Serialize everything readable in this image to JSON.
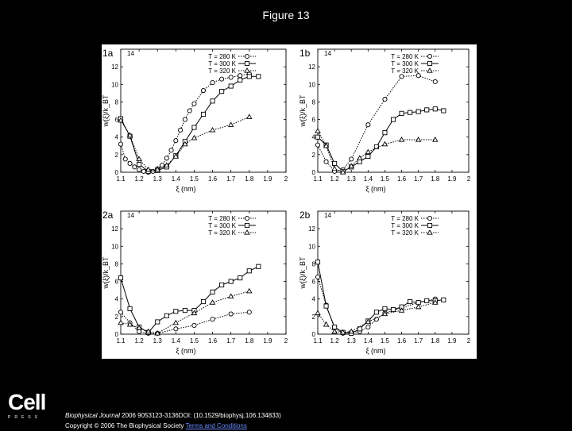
{
  "title": "Figure 13",
  "logo": {
    "name": "Cell",
    "sub": "PRESS"
  },
  "citation": {
    "journal": "Biophysical Journal",
    "ref": " 2006 9053123-3136DOI: (10.1529/biophysj.106.134833)",
    "copyright": "Copyright © 2006 The Biophysical Society ",
    "link": "Terms and Conditions"
  },
  "colors": {
    "background": "#000000",
    "panel": "#ffffff",
    "ink": "#000000",
    "link": "#6b8cff"
  },
  "chart_data": [
    {
      "type": "line",
      "panel_label": "1a",
      "xlabel": "ξ (nm)",
      "ylabel": "w(ξ)/k_BT",
      "xlim": [
        1.1,
        2
      ],
      "ylim": [
        0,
        14
      ],
      "xticks": [
        "1.1",
        "1.2",
        "1.3",
        "1.4",
        "1.5",
        "1.6",
        "1.7",
        "1.8",
        "1.9",
        "2"
      ],
      "yticks": [
        "0",
        "2",
        "4",
        "6",
        "8",
        "10",
        "12",
        "14"
      ],
      "legend_position": "top-right",
      "series": [
        {
          "name": "T = 280 K",
          "marker": "circle",
          "style": "dotted",
          "x": [
            1.1,
            1.125,
            1.15,
            1.175,
            1.2,
            1.225,
            1.25,
            1.275,
            1.3,
            1.325,
            1.35,
            1.375,
            1.4,
            1.425,
            1.45,
            1.475,
            1.5,
            1.55,
            1.6,
            1.65,
            1.7,
            1.75,
            1.8
          ],
          "y": [
            3.2,
            1.5,
            1.0,
            0.6,
            0.3,
            0.1,
            0.0,
            0.1,
            0.4,
            0.8,
            1.6,
            2.5,
            3.6,
            4.8,
            6.0,
            7.0,
            7.8,
            9.3,
            10.2,
            10.6,
            10.8,
            11.0,
            11.2
          ]
        },
        {
          "name": "T = 300 K",
          "marker": "square",
          "style": "solid",
          "x": [
            1.1,
            1.15,
            1.2,
            1.25,
            1.3,
            1.35,
            1.4,
            1.45,
            1.5,
            1.55,
            1.6,
            1.65,
            1.7,
            1.75,
            1.8,
            1.85
          ],
          "y": [
            6.1,
            4.1,
            0.9,
            0.1,
            0.2,
            0.6,
            1.9,
            3.5,
            5.1,
            6.6,
            8.1,
            9.2,
            9.8,
            10.5,
            10.9,
            10.9
          ]
        },
        {
          "name": "T = 320 K",
          "marker": "triangle",
          "style": "dotted",
          "x": [
            1.1,
            1.15,
            1.2,
            1.25,
            1.3,
            1.35,
            1.4,
            1.45,
            1.5,
            1.6,
            1.7,
            1.8
          ],
          "y": [
            5.9,
            4.2,
            1.5,
            0.3,
            0.3,
            0.8,
            1.8,
            3.2,
            3.9,
            4.8,
            5.4,
            6.3
          ]
        }
      ]
    },
    {
      "type": "line",
      "panel_label": "1b",
      "xlabel": "ξ (nm)",
      "ylabel": "w(ξ)/k_BT",
      "xlim": [
        1.1,
        2
      ],
      "ylim": [
        0,
        14
      ],
      "xticks": [
        "1.1",
        "1.2",
        "1.3",
        "1.4",
        "1.5",
        "1.6",
        "1.7",
        "1.8",
        "1.9",
        "2"
      ],
      "yticks": [
        "0",
        "2",
        "4",
        "6",
        "8",
        "10",
        "12",
        "14"
      ],
      "legend_position": "top-right",
      "series": [
        {
          "name": "T = 280 K",
          "marker": "circle",
          "style": "dotted",
          "x": [
            1.1,
            1.15,
            1.2,
            1.25,
            1.3,
            1.4,
            1.5,
            1.6,
            1.7,
            1.8
          ],
          "y": [
            3.1,
            1.2,
            0.1,
            0.3,
            1.5,
            5.4,
            8.3,
            10.9,
            11.0,
            10.3
          ]
        },
        {
          "name": "T = 300 K",
          "marker": "square",
          "style": "solid",
          "x": [
            1.1,
            1.15,
            1.2,
            1.25,
            1.3,
            1.35,
            1.4,
            1.45,
            1.5,
            1.55,
            1.6,
            1.65,
            1.7,
            1.75,
            1.8,
            1.85
          ],
          "y": [
            4.0,
            3.1,
            1.0,
            0.1,
            0.6,
            1.2,
            1.8,
            2.9,
            4.5,
            6.0,
            6.7,
            6.8,
            6.9,
            7.1,
            7.2,
            7.0
          ]
        },
        {
          "name": "T = 320 K",
          "marker": "triangle",
          "style": "dotted",
          "x": [
            1.1,
            1.15,
            1.2,
            1.25,
            1.3,
            1.35,
            1.4,
            1.5,
            1.6,
            1.7,
            1.8
          ],
          "y": [
            4.7,
            3.0,
            0.4,
            0.0,
            0.7,
            1.6,
            2.3,
            3.2,
            3.7,
            3.7,
            3.7
          ]
        }
      ]
    },
    {
      "type": "line",
      "panel_label": "2a",
      "xlabel": "ξ (nm)",
      "ylabel": "w(ξ)/k_BT",
      "xlim": [
        1.1,
        2
      ],
      "ylim": [
        0,
        14
      ],
      "xticks": [
        "1.1",
        "1.2",
        "1.3",
        "1.4",
        "1.5",
        "1.6",
        "1.7",
        "1.8",
        "1.9",
        "2"
      ],
      "yticks": [
        "0",
        "2",
        "4",
        "6",
        "8",
        "10",
        "12",
        "14"
      ],
      "legend_position": "top-right",
      "series": [
        {
          "name": "T = 280 K",
          "marker": "circle",
          "style": "dotted",
          "x": [
            1.1,
            1.15,
            1.2,
            1.25,
            1.3,
            1.4,
            1.5,
            1.6,
            1.7,
            1.8
          ],
          "y": [
            2.5,
            1.3,
            0.3,
            0.1,
            0.1,
            0.6,
            1.0,
            1.7,
            2.3,
            2.5
          ]
        },
        {
          "name": "T = 300 K",
          "marker": "square",
          "style": "solid",
          "x": [
            1.1,
            1.15,
            1.2,
            1.25,
            1.3,
            1.35,
            1.4,
            1.45,
            1.5,
            1.55,
            1.6,
            1.65,
            1.7,
            1.75,
            1.8,
            1.85
          ],
          "y": [
            6.4,
            2.9,
            0.8,
            0.2,
            1.4,
            2.1,
            2.6,
            2.7,
            2.7,
            3.7,
            4.8,
            5.6,
            6.0,
            6.4,
            7.2,
            7.7
          ]
        },
        {
          "name": "T = 320 K",
          "marker": "triangle",
          "style": "dotted",
          "x": [
            1.1,
            1.15,
            1.2,
            1.25,
            1.3,
            1.4,
            1.5,
            1.6,
            1.7,
            1.8
          ],
          "y": [
            1.3,
            1.1,
            0.7,
            0.3,
            0.1,
            1.3,
            2.4,
            3.6,
            4.3,
            4.9
          ]
        }
      ]
    },
    {
      "type": "line",
      "panel_label": "2b",
      "xlabel": "ξ (nm)",
      "ylabel": "w(ξ)/k_BT",
      "xlim": [
        1.1,
        2
      ],
      "ylim": [
        0,
        14
      ],
      "xticks": [
        "1.1",
        "1.2",
        "1.3",
        "1.4",
        "1.5",
        "1.6",
        "1.7",
        "1.8",
        "1.9",
        "2"
      ],
      "yticks": [
        "0",
        "2",
        "4",
        "6",
        "8",
        "10",
        "12",
        "14"
      ],
      "legend_position": "top-right",
      "series": [
        {
          "name": "T = 280 K",
          "marker": "circle",
          "style": "dotted",
          "x": [
            1.1,
            1.15,
            1.2,
            1.25,
            1.3,
            1.35,
            1.4,
            1.45,
            1.5,
            1.6,
            1.7,
            1.8
          ],
          "y": [
            6.5,
            3.3,
            0.7,
            0.1,
            0.2,
            0.3,
            0.8,
            1.7,
            2.4,
            3.0,
            3.6,
            4.0
          ]
        },
        {
          "name": "T = 300 K",
          "marker": "square",
          "style": "solid",
          "x": [
            1.1,
            1.15,
            1.2,
            1.25,
            1.3,
            1.35,
            1.4,
            1.45,
            1.5,
            1.55,
            1.6,
            1.65,
            1.7,
            1.75,
            1.8,
            1.85
          ],
          "y": [
            8.2,
            3.2,
            0.8,
            0.2,
            0.1,
            0.6,
            1.5,
            2.5,
            2.9,
            2.8,
            3.1,
            3.7,
            3.6,
            3.8,
            3.8,
            3.9
          ]
        },
        {
          "name": "T = 320 K",
          "marker": "triangle",
          "style": "dotted",
          "x": [
            1.1,
            1.15,
            1.2,
            1.25,
            1.3,
            1.4,
            1.5,
            1.6,
            1.7,
            1.8
          ],
          "y": [
            2.4,
            1.1,
            0.3,
            0.2,
            0.3,
            1.4,
            2.3,
            2.7,
            3.1,
            3.6
          ]
        }
      ]
    }
  ]
}
